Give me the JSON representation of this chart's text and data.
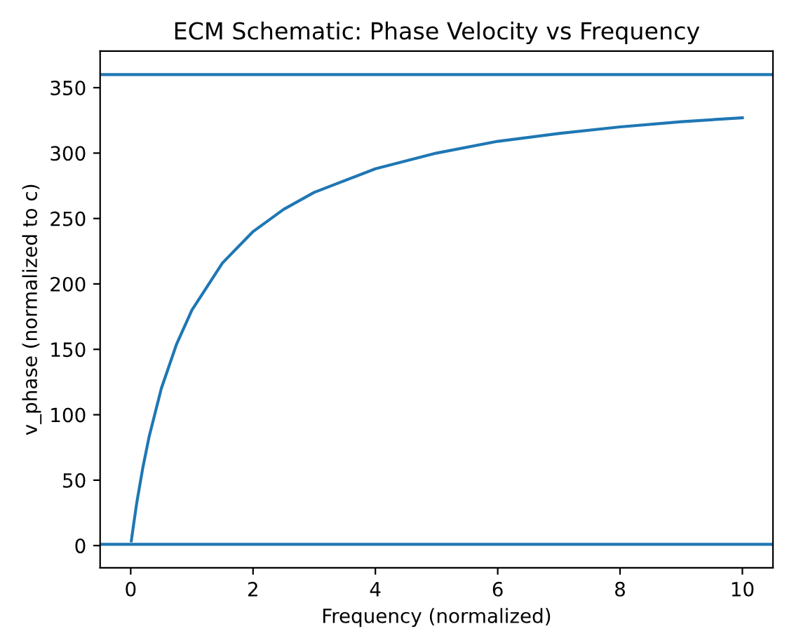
{
  "chart_data": {
    "type": "line",
    "title": "ECM Schematic: Phase Velocity vs Frequency",
    "xlabel": "Frequency (normalized)",
    "ylabel": "v_phase (normalized to c)",
    "x": [
      0.01,
      0.05,
      0.1,
      0.2,
      0.3,
      0.5,
      0.75,
      1,
      1.5,
      2,
      2.5,
      3,
      4,
      5,
      6,
      7,
      8,
      9,
      10
    ],
    "series": [
      {
        "color": "#1f77b4",
        "values": [
          3.6,
          17,
          33,
          60,
          83,
          120,
          154,
          180,
          216,
          240,
          257,
          270,
          288,
          300,
          309,
          315,
          320,
          324,
          327
        ]
      }
    ],
    "ref_lines": [
      {
        "axis": "y",
        "value": 360,
        "label": null,
        "color": "#1f77b4"
      },
      {
        "axis": "y",
        "value": 1,
        "label": null,
        "color": "#1f77b4"
      }
    ],
    "xlim": [
      -0.5,
      10.5
    ],
    "ylim": [
      -17,
      378
    ],
    "xticks": [
      0,
      2,
      4,
      6,
      8,
      10
    ],
    "yticks": [
      0,
      50,
      100,
      150,
      200,
      250,
      300,
      350
    ],
    "grid": false,
    "legend": false,
    "marker": "none",
    "line_style": "solid"
  }
}
